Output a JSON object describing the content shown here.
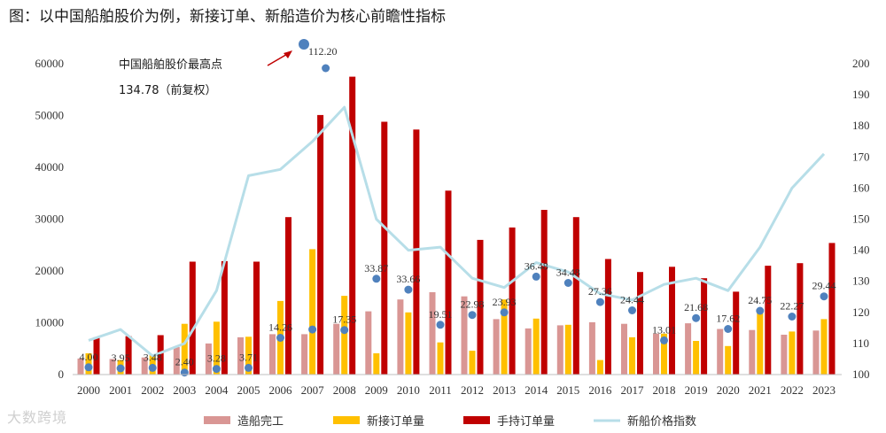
{
  "page": {
    "title": "图：以中国船舶股价为例，新接订单、新船造价为核心前瞻性指标",
    "watermark": "大数跨境"
  },
  "chart_data": {
    "type": "bar",
    "title": "",
    "categories": [
      "2000",
      "2001",
      "2002",
      "2003",
      "2004",
      "2005",
      "2006",
      "2007",
      "2008",
      "2009",
      "2010",
      "2011",
      "2012",
      "2013",
      "2014",
      "2015",
      "2016",
      "2017",
      "2018",
      "2019",
      "2020",
      "2021",
      "2022",
      "2023"
    ],
    "ylim_left": [
      0,
      60000
    ],
    "yticks_left": [
      "0",
      "10000",
      "20000",
      "30000",
      "40000",
      "50000",
      "60000"
    ],
    "ylim_right": [
      100,
      200
    ],
    "yticks_right": [
      "100",
      "110",
      "120",
      "130",
      "140",
      "150",
      "160",
      "170",
      "180",
      "190",
      "200"
    ],
    "grid": false,
    "legend_position": "bottom",
    "series": [
      {
        "name": "造船完工",
        "kind": "bar",
        "axis": "left",
        "color": "#d99694",
        "values": [
          3100,
          3000,
          3300,
          5300,
          6000,
          7200,
          7800,
          7800,
          9800,
          12200,
          14500,
          15900,
          15100,
          10700,
          8900,
          9500,
          10100,
          9800,
          7900,
          9900,
          8800,
          8600,
          7700,
          8500
        ]
      },
      {
        "name": "新接订单量",
        "kind": "bar",
        "axis": "left",
        "color": "#ffc000",
        "values": [
          4100,
          2800,
          3800,
          9800,
          10200,
          7300,
          14200,
          24200,
          15200,
          4100,
          12000,
          6200,
          4600,
          14500,
          10800,
          9600,
          2800,
          7200,
          7900,
          6500,
          5500,
          12000,
          8300,
          10700
        ]
      },
      {
        "name": "手持订单量",
        "kind": "bar",
        "axis": "left",
        "color": "#c00000",
        "values": [
          7200,
          7400,
          7600,
          21800,
          21900,
          21800,
          30400,
          50100,
          57500,
          48800,
          47300,
          35500,
          26000,
          28400,
          31800,
          30400,
          22300,
          19800,
          20800,
          18600,
          16000,
          21000,
          21500,
          25400
        ]
      },
      {
        "name": "新船价格指数",
        "kind": "line",
        "axis": "right",
        "color": "#b7dee8",
        "values": [
          111,
          114.5,
          106,
          110,
          127,
          164,
          166,
          175,
          186,
          150,
          140,
          141,
          131,
          128,
          136,
          133,
          126,
          124,
          129,
          131,
          127,
          141,
          160,
          171
        ]
      }
    ],
    "stock_price": {
      "name": "中国船舶股价",
      "axis": "left",
      "color": "#4f81bd",
      "values": [
        1400,
        1200,
        1300,
        400,
        1100,
        1300,
        7100,
        8700,
        8600,
        18500,
        16400,
        9600,
        11500,
        12000,
        18900,
        17700,
        14000,
        12400,
        6600,
        10900,
        8800,
        12300,
        11200,
        15100
      ],
      "labels": [
        "4.00",
        "3.95",
        "3.48",
        "2.40",
        "3.28",
        "3.71",
        "14.26",
        "",
        "17.35",
        "33.87",
        "33.66",
        "19.51",
        "22.98",
        "23.93",
        "36.48",
        "34.48",
        "27.36",
        "24.44",
        "13.01",
        "21.68",
        "17.62",
        "24.75",
        "22.27",
        "29.44"
      ]
    },
    "peak": {
      "label_line1": "中国船舶股价最高点",
      "label_line2": "134.78（前复权）",
      "value_label": "112.20"
    }
  }
}
